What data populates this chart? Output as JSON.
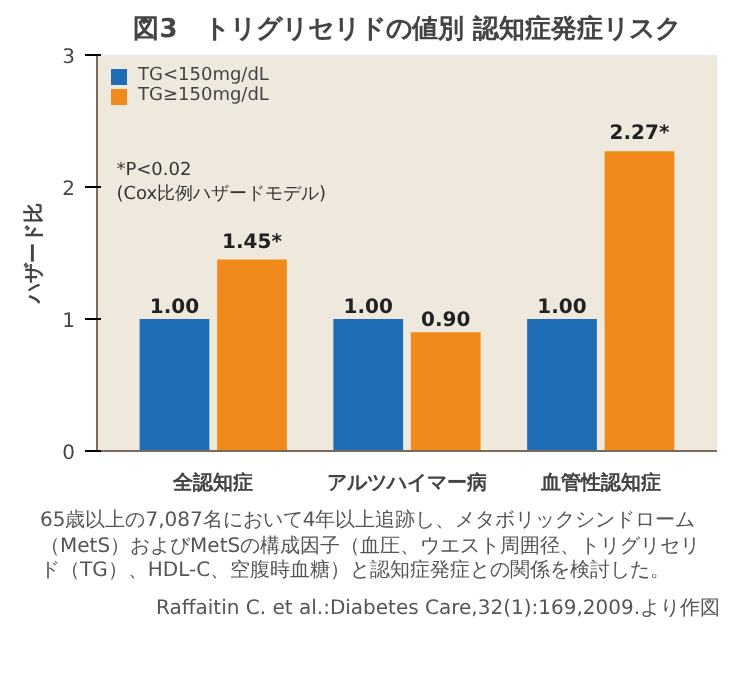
{
  "chart_data": {
    "type": "bar",
    "title": "図3　トリグリセリドの値別 認知症発症リスク",
    "categories": [
      "全認知症",
      "アルツハイマー病",
      "血管性認知症"
    ],
    "series": [
      {
        "name": "TG<150mg/dL",
        "color": "#1f6db5",
        "values": [
          1.0,
          1.0,
          1.0
        ],
        "value_labels": [
          "1.00",
          "1.00",
          "1.00"
        ]
      },
      {
        "name": "TG≥150mg/dL",
        "color": "#f08a1a",
        "values": [
          1.45,
          0.9,
          2.27
        ],
        "value_labels": [
          "1.45*",
          "0.90",
          "2.27*"
        ]
      }
    ],
    "ylabel": "ハザード比",
    "ylim": [
      0,
      3
    ],
    "yticks": [
      0,
      1,
      2,
      3
    ],
    "grid": false,
    "legend": "top left",
    "annotations": [
      "*P<0.02\n(Cox比例ハザードモデル)",
      "65歳以上の7,087名において4年以上追跡し、メタボリックシンドローム（MetS）およびMetSの構成因子（血圧、ウエスト周囲径、トリグリセリド（TG）、HDL-C、空腹時血糖）と認知症発症との関係を検討した。",
      "Raffaitin C. et al.:Diabetes Care,32(1):169,2009.より作図"
    ]
  }
}
